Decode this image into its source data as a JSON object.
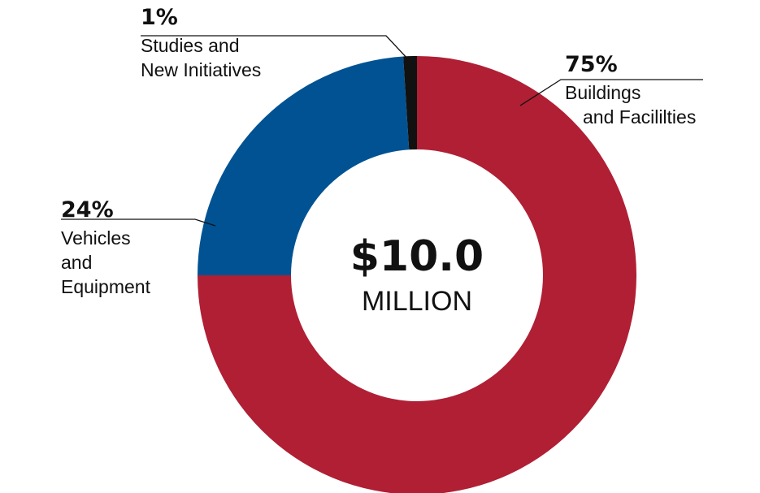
{
  "chart_data": {
    "type": "pie",
    "variant": "donut",
    "center_value": "$10.0",
    "center_unit": "MILLION",
    "slices": [
      {
        "label_lines": [
          "Buildings",
          "and Facililties"
        ],
        "value": 75,
        "percent_label": "75%",
        "color": "#b01f34"
      },
      {
        "label_lines": [
          "Vehicles",
          "and",
          "Equipment"
        ],
        "value": 24,
        "percent_label": "24%",
        "color": "#005293"
      },
      {
        "label_lines": [
          "Studies and",
          "New Initiatives"
        ],
        "value": 1,
        "percent_label": "1%",
        "color": "#111111"
      }
    ]
  }
}
